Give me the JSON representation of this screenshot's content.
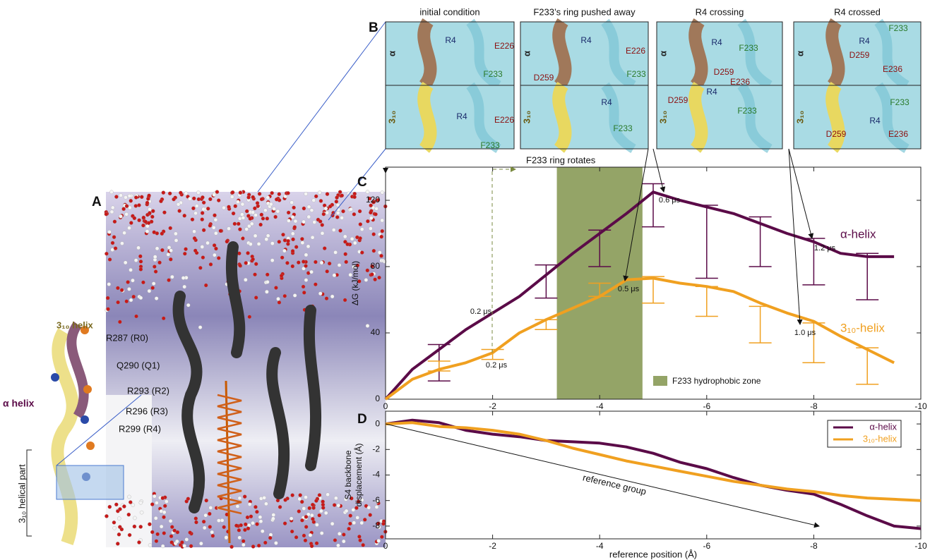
{
  "panel_a": {
    "label": "A",
    "texts": [
      "3₁₀ helix",
      "R287 (R0)",
      "Q290 (Q1)",
      "R293 (R2)",
      "R296 (R3)",
      "R299 (R4)",
      "α helix",
      "3₁₀ helical part"
    ]
  },
  "panel_b": {
    "label": "B",
    "row_labels": [
      "α",
      "3₁₀"
    ],
    "frames": [
      {
        "title": "initial condition",
        "top": [
          "R4",
          "E226",
          "F233"
        ],
        "bottom": [
          "R4",
          "E226",
          "F233"
        ]
      },
      {
        "title": "F233’s ring pushed away",
        "top": [
          "R4",
          "E226",
          "D259",
          "F233"
        ],
        "bottom": [
          "R4",
          "F233"
        ]
      },
      {
        "title": "R4 crossing",
        "top": [
          "R4",
          "F233",
          "D259",
          "E236"
        ],
        "bottom": [
          "R4",
          "D259",
          "F233"
        ]
      },
      {
        "title": "R4 crossed",
        "top": [
          "F233",
          "R4",
          "D259",
          "E236"
        ],
        "bottom": [
          "F233",
          "R4",
          "D259",
          "E236"
        ]
      }
    ]
  },
  "chart_data": [
    {
      "type": "line",
      "label": "C",
      "ylabel": "ΔG (kJ/mol)",
      "x": [
        0,
        -0.5,
        -1,
        -1.5,
        -2,
        -2.5,
        -3,
        -3.5,
        -4,
        -4.5,
        -5,
        -5.5,
        -6,
        -6.5,
        -7,
        -7.5,
        -8,
        -8.5,
        -9,
        -9.5
      ],
      "xlim": [
        0,
        -10
      ],
      "xticks": [
        0,
        -2,
        -4,
        -6,
        -8,
        -10
      ],
      "ylim": [
        0,
        140
      ],
      "yticks": [
        0,
        40,
        80,
        120
      ],
      "series": [
        {
          "name": "α-helix",
          "color": "#5b0b48",
          "values": [
            0,
            18,
            30,
            42,
            52,
            62,
            75,
            88,
            100,
            112,
            125,
            120,
            116,
            112,
            106,
            100,
            95,
            88,
            86,
            86
          ],
          "errors": {
            "x": [
              -1,
              -3,
              -4,
              -5,
              -6,
              -7,
              -8,
              -9
            ],
            "values": [
              22,
              71,
              91,
              117,
              95,
              95,
              83,
              74
            ],
            "err": [
              11,
              10,
              11,
              13,
              22,
              15,
              14,
              14
            ]
          }
        },
        {
          "name": "3₁₀-helix",
          "color": "#f0a020",
          "values": [
            0,
            12,
            18,
            22,
            28,
            40,
            48,
            55,
            62,
            72,
            73,
            70,
            68,
            65,
            58,
            52,
            47,
            38,
            30,
            22
          ],
          "errors": {
            "x": [
              -1,
              -2,
              -3,
              -4,
              -5,
              -6,
              -7,
              -8,
              -9
            ],
            "values": [
              20,
              27,
              45,
              66,
              66,
              59,
              45,
              34,
              20
            ],
            "err": [
              3,
              3,
              3,
              4,
              8,
              9,
              11,
              12,
              11
            ]
          }
        }
      ],
      "zone": {
        "x": [
          -3.2,
          -4.8
        ],
        "label": "F233 hydrophobic zone",
        "color": "#94a467"
      },
      "annotations": [
        "F233 ring rotates",
        "0.6  μs",
        "1.2  μs",
        "0.2  μs",
        "0.2  μs",
        "0.5  μs",
        "1.0  μs"
      ]
    },
    {
      "type": "line",
      "label": "D",
      "ylabel": [
        "S4 backbone",
        "displacement (Å)"
      ],
      "xlabel": "reference position (Å)",
      "x": [
        0,
        -0.5,
        -1,
        -1.5,
        -2,
        -2.5,
        -3,
        -3.5,
        -4,
        -4.5,
        -5,
        -5.5,
        -6,
        -6.5,
        -7,
        -7.5,
        -8,
        -8.5,
        -9,
        -9.5,
        -10
      ],
      "xlim": [
        0,
        -10
      ],
      "xticks": [
        0,
        -2,
        -4,
        -6,
        -8,
        -10
      ],
      "ylim": [
        -9,
        1
      ],
      "yticks": [
        0,
        -2,
        -4,
        -6,
        -8
      ],
      "series": [
        {
          "name": "α-helix",
          "color": "#5b0b48",
          "values": [
            0,
            0.3,
            0.1,
            -0.5,
            -0.8,
            -1.0,
            -1.3,
            -1.4,
            -1.5,
            -1.8,
            -2.3,
            -3.0,
            -3.5,
            -4.2,
            -4.8,
            -5.2,
            -5.5,
            -6.3,
            -7.2,
            -8.0,
            -8.2
          ]
        },
        {
          "name": "3₁₀-helix",
          "color": "#f0a020",
          "values": [
            0,
            0.1,
            -0.2,
            -0.3,
            -0.5,
            -0.8,
            -1.3,
            -1.9,
            -2.4,
            -2.9,
            -3.3,
            -3.7,
            -4.1,
            -4.5,
            -4.8,
            -5.1,
            -5.3,
            -5.6,
            -5.8,
            -5.9,
            -6.0
          ]
        }
      ],
      "legend": "upper right",
      "annotations": [
        "reference group"
      ]
    }
  ]
}
